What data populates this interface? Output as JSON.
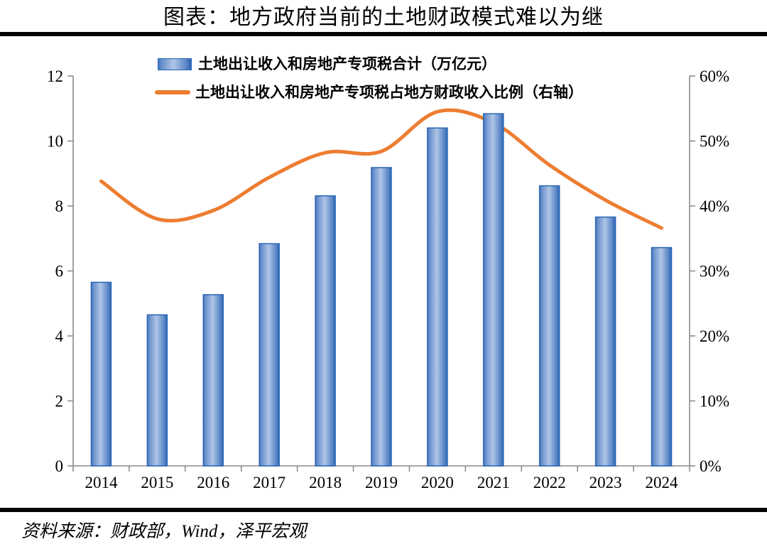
{
  "page": {
    "title": "图表：地方政府当前的土地财政模式难以为继",
    "source_note": "资料来源：财政部，Wind，泽平宏观"
  },
  "colors": {
    "line": "#ED7D31",
    "bar_border": "#2B66B4",
    "bar_gradient": [
      "#4377C1",
      "#6B93CC",
      "#AEC5E5",
      "#5A86C6",
      "#2B66B4"
    ],
    "axis": "#8C8C8C",
    "rule": "#000000",
    "text": "#000000"
  },
  "chart_data": {
    "type": "bar+line combo",
    "title": "图表：地方政府当前的土地财政模式难以为继",
    "categories": [
      "2014",
      "2015",
      "2016",
      "2017",
      "2018",
      "2019",
      "2020",
      "2021",
      "2022",
      "2023",
      "2024"
    ],
    "series": [
      {
        "name": "土地出让收入和房地产专项税合计（万亿元）",
        "type": "bar",
        "axis": "left",
        "unit": "万亿元",
        "values": [
          5.65,
          4.65,
          5.27,
          6.84,
          8.31,
          9.18,
          10.4,
          10.84,
          8.62,
          7.66,
          6.72
        ]
      },
      {
        "name": "土地出让收入和房地产专项税占地方财政收入比例（右轴）",
        "type": "line",
        "axis": "right",
        "unit": "%",
        "values": [
          43.8,
          38.0,
          39.3,
          44.4,
          48.2,
          48.4,
          54.5,
          52.8,
          46.3,
          40.9,
          36.6
        ]
      }
    ],
    "left_axis": {
      "min": 0,
      "max": 12,
      "ticks": [
        "0",
        "2",
        "4",
        "6",
        "8",
        "10",
        "12"
      ]
    },
    "right_axis": {
      "min": 0,
      "max": 60,
      "ticks": [
        "0%",
        "10%",
        "20%",
        "30%",
        "40%",
        "50%",
        "60%"
      ]
    },
    "grid": false,
    "legend_position": "top-center",
    "source": "资料来源：财政部，Wind，泽平宏观"
  }
}
